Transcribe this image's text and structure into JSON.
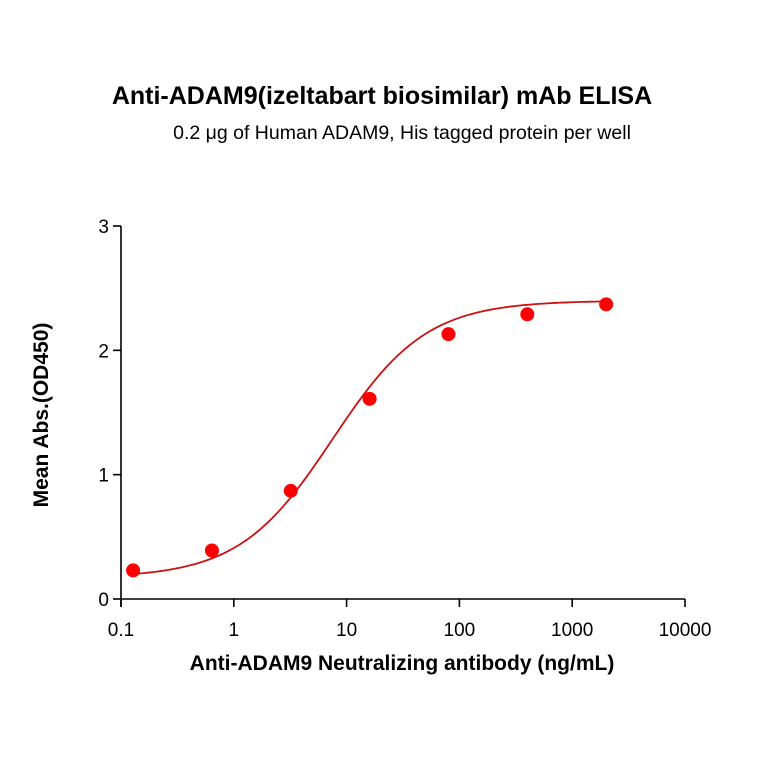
{
  "chart_data": {
    "type": "scatter",
    "title": "Anti-ADAM9(izeltabart biosimilar) mAb ELISA",
    "subtitle": "0.2 μg of Human ADAM9, His tagged protein per well",
    "xlabel": "Anti-ADAM9 Neutralizing antibody (ng/mL)",
    "ylabel": "Mean Abs.(OD450)",
    "xscale": "log",
    "xlim": [
      0.1,
      10000
    ],
    "ylim": [
      0,
      3
    ],
    "xticks": [
      "0.1",
      "1",
      "10",
      "100",
      "1000",
      "10000"
    ],
    "yticks": [
      "0",
      "1",
      "2",
      "3"
    ],
    "grid": false,
    "legend": null,
    "series": [
      {
        "name": "Anti-ADAM9(izeltabart biosimilar) mAb",
        "x": [
          0.128,
          0.64,
          3.2,
          16,
          80,
          400,
          2000
        ],
        "y": [
          0.23,
          0.39,
          0.87,
          1.61,
          2.13,
          2.29,
          2.37
        ],
        "marker_color": "#ff0000",
        "line_color": "#cc1111",
        "fit": {
          "model": "4PL",
          "bottom": 0.17,
          "top": 2.4,
          "ec50": 7.5,
          "hill": 1.05
        }
      }
    ]
  }
}
